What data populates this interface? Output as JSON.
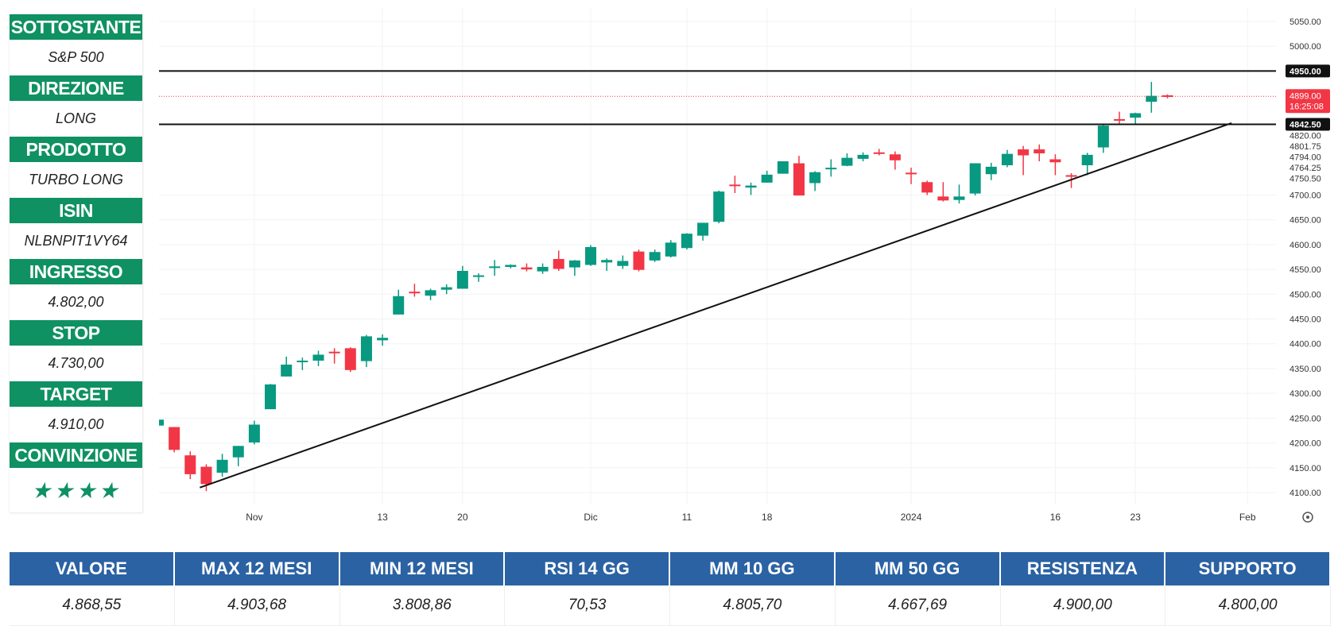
{
  "panel": [
    {
      "label": "SOTTOSTANTE",
      "value": "S&P 500"
    },
    {
      "label": "DIREZIONE",
      "value": "LONG"
    },
    {
      "label": "PRODOTTO",
      "value": "TURBO LONG"
    },
    {
      "label": "ISIN",
      "value": "NLBNPIT1VY64"
    },
    {
      "label": "INGRESSO",
      "value": "4.802,00"
    },
    {
      "label": "STOP",
      "value": "4.730,00"
    },
    {
      "label": "TARGET",
      "value": "4.910,00"
    },
    {
      "label": "CONVINZIONE",
      "value": "★★★★"
    }
  ],
  "table": {
    "headers": [
      "VALORE",
      "MAX 12 MESI",
      "MIN 12 MESI",
      "RSI 14 GG",
      "MM 10 GG",
      "MM 50 GG",
      "RESISTENZA",
      "SUPPORTO"
    ],
    "values": [
      "4.868,55",
      "4.903,68",
      "3.808,86",
      "70,53",
      "4.805,70",
      "4.667,69",
      "4.900,00",
      "4.800,00"
    ]
  },
  "colors": {
    "up": "#089981",
    "down": "#f23645",
    "panel_green": "#0f9163",
    "table_blue": "#2b62a3"
  },
  "chart_data": {
    "type": "candlestick",
    "title": "",
    "ylim": [
      4100,
      5050
    ],
    "y_ticks": [
      "5050.00",
      "5000.00",
      "4700.00",
      "4650.00",
      "4600.00",
      "4550.00",
      "4500.00",
      "4450.00",
      "4400.00",
      "4350.00",
      "4300.00",
      "4250.00",
      "4200.00",
      "4150.00",
      "4100.00"
    ],
    "y_tick_values": [
      5050,
      5000,
      4700,
      4650,
      4600,
      4550,
      4500,
      4450,
      4400,
      4350,
      4300,
      4250,
      4200,
      4150,
      4100
    ],
    "extra_labels": [
      {
        "text": "4820.00",
        "value": 4820
      },
      {
        "text": "4801.75",
        "value": 4801.75
      },
      {
        "text": "4794.00",
        "value": 4794
      },
      {
        "text": "4764.25",
        "value": 4764.25
      },
      {
        "text": "4750.50",
        "value": 4750.5
      }
    ],
    "x_ticks": [
      {
        "label": "Nov",
        "index": 6
      },
      {
        "label": "13",
        "index": 14
      },
      {
        "label": "20",
        "index": 19
      },
      {
        "label": "Dic",
        "index": 27
      },
      {
        "label": "11",
        "index": 33
      },
      {
        "label": "18",
        "index": 38
      },
      {
        "label": "2024",
        "index": 47
      },
      {
        "label": "16",
        "index": 56
      },
      {
        "label": "23",
        "index": 61
      },
      {
        "label": "Feb",
        "index": 68
      }
    ],
    "horizontal_levels": [
      {
        "value": 4950,
        "label": "4950.00"
      },
      {
        "value": 4842.5,
        "label": "4842.50"
      }
    ],
    "last_price": {
      "value": 4899,
      "label": "4899.00",
      "countdown": "16:25:08"
    },
    "trendline": [
      {
        "index": 2.6,
        "value": 4110
      },
      {
        "index": 67,
        "value": 4845
      }
    ],
    "ohlc": [
      [
        4235,
        4259,
        4219,
        4247
      ],
      [
        4232,
        4232,
        4181,
        4186
      ],
      [
        4175,
        4183,
        4127,
        4137
      ],
      [
        4152,
        4157,
        4103,
        4117
      ],
      [
        4140,
        4178,
        4132,
        4166
      ],
      [
        4171,
        4194,
        4153,
        4194
      ],
      [
        4201,
        4245,
        4197,
        4237
      ],
      [
        4268,
        4319,
        4268,
        4318
      ],
      [
        4334,
        4374,
        4334,
        4358
      ],
      [
        4365,
        4372,
        4347,
        4366
      ],
      [
        4366,
        4386,
        4355,
        4378
      ],
      [
        4384,
        4391,
        4360,
        4383
      ],
      [
        4391,
        4393,
        4343,
        4347
      ],
      [
        4365,
        4418,
        4353,
        4415
      ],
      [
        4407,
        4419,
        4396,
        4412
      ],
      [
        4459,
        4509,
        4459,
        4496
      ],
      [
        4505,
        4521,
        4495,
        4502
      ],
      [
        4497,
        4511,
        4488,
        4508
      ],
      [
        4509,
        4520,
        4500,
        4514
      ],
      [
        4511,
        4557,
        4511,
        4547
      ],
      [
        4538,
        4542,
        4525,
        4538
      ],
      [
        4553,
        4569,
        4537,
        4556
      ],
      [
        4555,
        4560,
        4552,
        4559
      ],
      [
        4554,
        4562,
        4546,
        4550
      ],
      [
        4546,
        4562,
        4541,
        4555
      ],
      [
        4571,
        4588,
        4547,
        4551
      ],
      [
        4554,
        4569,
        4537,
        4568
      ],
      [
        4559,
        4599,
        4557,
        4595
      ],
      [
        4564,
        4572,
        4547,
        4569
      ],
      [
        4557,
        4578,
        4551,
        4567
      ],
      [
        4586,
        4590,
        4546,
        4549
      ],
      [
        4568,
        4590,
        4565,
        4585
      ],
      [
        4576,
        4609,
        4574,
        4604
      ],
      [
        4593,
        4623,
        4590,
        4622
      ],
      [
        4618,
        4644,
        4608,
        4644
      ],
      [
        4646,
        4709,
        4643,
        4707
      ],
      [
        4721,
        4739,
        4704,
        4720
      ],
      [
        4715,
        4725,
        4700,
        4719
      ],
      [
        4725,
        4749,
        4725,
        4741
      ],
      [
        4743,
        4768,
        4743,
        4768
      ],
      [
        4764,
        4779,
        4699,
        4699
      ],
      [
        4724,
        4748,
        4708,
        4746
      ],
      [
        4754,
        4772,
        4737,
        4755
      ],
      [
        4759,
        4784,
        4758,
        4775
      ],
      [
        4773,
        4786,
        4768,
        4781
      ],
      [
        4786,
        4793,
        4780,
        4783
      ],
      [
        4782,
        4788,
        4751,
        4770
      ],
      [
        4745,
        4755,
        4722,
        4743
      ],
      [
        4726,
        4729,
        4700,
        4705
      ],
      [
        4697,
        4726,
        4687,
        4689
      ],
      [
        4690,
        4721,
        4683,
        4697
      ],
      [
        4703,
        4764,
        4699,
        4764
      ],
      [
        4742,
        4765,
        4730,
        4757
      ],
      [
        4760,
        4791,
        4756,
        4783
      ],
      [
        4792,
        4799,
        4740,
        4780
      ],
      [
        4792,
        4802,
        4768,
        4784
      ],
      [
        4772,
        4782,
        4740,
        4766
      ],
      [
        4740,
        4744,
        4714,
        4739
      ],
      [
        4760,
        4785,
        4740,
        4781
      ],
      [
        4796,
        4842,
        4785,
        4840
      ],
      [
        4853,
        4868,
        4844,
        4850
      ],
      [
        4856,
        4866,
        4842,
        4865
      ],
      [
        4888,
        4928,
        4866,
        4900
      ],
      [
        4901,
        4903,
        4895,
        4899
      ]
    ]
  }
}
